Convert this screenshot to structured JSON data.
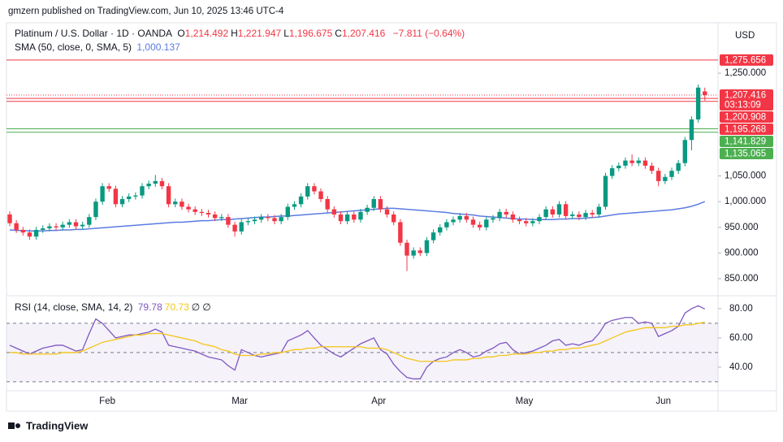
{
  "header": {
    "publisher": "gmzern published on TradingView.com, Jun 10, 2025 13:46 UTC-4",
    "currency": "USD",
    "footer": "TradingView"
  },
  "chart_data": [
    {
      "type": "candlestick",
      "legend": {
        "symbol": "Platinum / U.S. Dollar · 1D · OANDA",
        "ohlc": [
          {
            "key": "O",
            "value": "1,214.492"
          },
          {
            "key": "H",
            "value": "1,221.947"
          },
          {
            "key": "L",
            "value": "1,196.675"
          },
          {
            "key": "C",
            "value": "1,207.416"
          }
        ],
        "change": "−7.811 (−0.64%)"
      },
      "categories": [
        null,
        null,
        null,
        null,
        null,
        null,
        null,
        null,
        null,
        null,
        null,
        null,
        null,
        null,
        "Feb",
        null,
        null,
        null,
        null,
        null,
        null,
        null,
        null,
        null,
        null,
        null,
        null,
        null,
        null,
        null,
        null,
        null,
        null,
        null,
        "Mar",
        null,
        null,
        null,
        null,
        null,
        null,
        null,
        null,
        null,
        null,
        null,
        null,
        null,
        null,
        null,
        null,
        null,
        null,
        null,
        null,
        "Apr",
        null,
        null,
        null,
        null,
        null,
        null,
        null,
        null,
        null,
        null,
        null,
        null,
        null,
        null,
        null,
        null,
        null,
        null,
        null,
        null,
        null,
        "May",
        null,
        null,
        null,
        null,
        null,
        null,
        null,
        null,
        null,
        null,
        null,
        null,
        null,
        null,
        null,
        null,
        null,
        null,
        null,
        null,
        "Jun",
        null,
        null,
        null,
        null,
        null,
        null,
        null
      ],
      "open": [
        975,
        958,
        945,
        940,
        932,
        945,
        948,
        952,
        950,
        955,
        960,
        952,
        955,
        970,
        1000,
        1030,
        1025,
        995,
        1005,
        1010,
        1012,
        1030,
        1035,
        1040,
        1030,
        995,
        1000,
        990,
        985,
        980,
        978,
        975,
        968,
        970,
        955,
        942,
        960,
        962,
        965,
        970,
        968,
        962,
        970,
        990,
        995,
        1010,
        1030,
        1020,
        1005,
        985,
        975,
        962,
        975,
        965,
        980,
        988,
        1005,
        985,
        975,
        960,
        920,
        895,
        905,
        900,
        925,
        940,
        950,
        960,
        965,
        972,
        965,
        955,
        950,
        965,
        968,
        980,
        975,
        965,
        962,
        958,
        962,
        970,
        985,
        975,
        995,
        972,
        975,
        970,
        978,
        975,
        990,
        1050,
        1065,
        1070,
        1080,
        1075,
        1080,
        1070,
        1060,
        1040,
        1048,
        1060,
        1075,
        1120,
        1160,
        1214.492
      ],
      "high": [
        981,
        964,
        951,
        946,
        951,
        954,
        958,
        958,
        961,
        966,
        966,
        961,
        976,
        1006,
        1036,
        1036,
        1031,
        1011,
        1016,
        1018,
        1036,
        1041,
        1052,
        1046,
        1036,
        1006,
        1006,
        996,
        991,
        986,
        984,
        981,
        976,
        976,
        961,
        966,
        968,
        971,
        976,
        976,
        974,
        976,
        996,
        1001,
        1016,
        1036,
        1036,
        1026,
        1011,
        991,
        981,
        981,
        981,
        986,
        994,
        1011,
        1011,
        991,
        981,
        966,
        926,
        911,
        911,
        931,
        946,
        956,
        966,
        971,
        978,
        978,
        971,
        961,
        971,
        974,
        986,
        986,
        981,
        971,
        968,
        968,
        976,
        991,
        991,
        1001,
        1001,
        981,
        981,
        984,
        984,
        996,
        1056,
        1071,
        1076,
        1086,
        1092,
        1086,
        1086,
        1076,
        1066,
        1054,
        1066,
        1081,
        1126,
        1166,
        1228,
        1221.947
      ],
      "low": [
        952,
        939,
        934,
        926,
        926,
        939,
        942,
        944,
        944,
        949,
        946,
        946,
        949,
        964,
        994,
        1019,
        989,
        989,
        999,
        1004,
        1006,
        1024,
        1029,
        1024,
        989,
        989,
        984,
        979,
        974,
        972,
        969,
        962,
        962,
        949,
        932,
        936,
        954,
        956,
        959,
        962,
        956,
        956,
        964,
        984,
        989,
        1004,
        1014,
        999,
        979,
        969,
        956,
        956,
        959,
        959,
        974,
        982,
        979,
        969,
        954,
        914,
        865,
        889,
        894,
        894,
        919,
        934,
        944,
        954,
        959,
        959,
        949,
        944,
        944,
        959,
        962,
        969,
        959,
        956,
        952,
        952,
        956,
        964,
        969,
        969,
        966,
        966,
        964,
        964,
        969,
        969,
        984,
        1044,
        1059,
        1064,
        1069,
        1069,
        1064,
        1054,
        1030,
        1034,
        1042,
        1054,
        1069,
        1100,
        1154,
        1196.675
      ],
      "close": [
        958,
        945,
        940,
        932,
        945,
        948,
        952,
        950,
        955,
        960,
        952,
        955,
        970,
        1000,
        1030,
        1025,
        995,
        1005,
        1010,
        1012,
        1030,
        1035,
        1040,
        1030,
        995,
        1000,
        990,
        985,
        980,
        978,
        975,
        968,
        970,
        955,
        942,
        960,
        962,
        965,
        970,
        968,
        962,
        970,
        990,
        995,
        1010,
        1030,
        1020,
        1005,
        985,
        975,
        962,
        975,
        965,
        980,
        988,
        1005,
        985,
        975,
        960,
        920,
        895,
        905,
        900,
        925,
        940,
        950,
        960,
        965,
        972,
        965,
        955,
        950,
        965,
        968,
        980,
        975,
        965,
        962,
        958,
        962,
        970,
        985,
        975,
        995,
        972,
        975,
        970,
        978,
        975,
        990,
        1050,
        1065,
        1070,
        1080,
        1075,
        1080,
        1070,
        1060,
        1040,
        1048,
        1060,
        1075,
        1120,
        1160,
        1222,
        1207.416
      ],
      "up_color": "#089981",
      "down_color": "#f23645",
      "sma": {
        "name": "SMA (50, close, 0, SMA, 5)",
        "value_label": "1,000.137",
        "color": "#5b7be0",
        "values": [
          945,
          944,
          944,
          943,
          943,
          943,
          944,
          944,
          945,
          945,
          946,
          946,
          947,
          948,
          949,
          950,
          951,
          952,
          953,
          954,
          955,
          956,
          957,
          958,
          959,
          960,
          960,
          961,
          962,
          963,
          963,
          964,
          965,
          965,
          966,
          967,
          968,
          969,
          970,
          970,
          971,
          972,
          972,
          973,
          974,
          975,
          976,
          977,
          978,
          979,
          980,
          981,
          982,
          983,
          984,
          985,
          986,
          987,
          987,
          986,
          985,
          984,
          983,
          982,
          981,
          980,
          979,
          977,
          976,
          975,
          974,
          972,
          971,
          970,
          969,
          968,
          967,
          966,
          966,
          965,
          965,
          965,
          965,
          966,
          966,
          967,
          967,
          968,
          969,
          970,
          972,
          974,
          976,
          977,
          978,
          979,
          980,
          981,
          982,
          983,
          984,
          986,
          988,
          991,
          995,
          1000.137
        ]
      },
      "levels": [
        {
          "value": 1275.656,
          "label": "1,275.656",
          "color": "#f23645"
        },
        {
          "value": 1207.416,
          "label": "1,207.416",
          "color": "#f23645",
          "countdown": "03:13:09",
          "dotted": true
        },
        {
          "value": 1200.908,
          "label": "1,200.908",
          "color": "#f23645"
        },
        {
          "value": 1195.268,
          "label": "1,195.268",
          "color": "#f23645"
        },
        {
          "value": 1141.829,
          "label": "1,141.829",
          "color": "#4caf50"
        },
        {
          "value": 1135.065,
          "label": "1,135.065",
          "color": "#4caf50"
        }
      ],
      "ylim": [
        820,
        1345
      ],
      "yticks": [
        {
          "value": 850,
          "label": "850.000"
        },
        {
          "value": 900,
          "label": "900.000"
        },
        {
          "value": 950,
          "label": "950.000"
        },
        {
          "value": 1000,
          "label": "1,000.000"
        },
        {
          "value": 1050,
          "label": "1,050.000"
        },
        {
          "value": 1250,
          "label": "1,250.000"
        }
      ],
      "grid": false
    },
    {
      "type": "line",
      "legend": {
        "name": "RSI (14, close, SMA, 14, 2)",
        "values": [
          "79.78",
          "70.73",
          "∅",
          "∅"
        ]
      },
      "series": [
        {
          "color": "#7e57c2",
          "values": [
            55,
            53,
            51,
            49,
            51,
            53,
            54,
            55,
            55,
            53,
            51,
            52,
            63,
            73,
            70,
            65,
            60,
            61,
            62,
            62,
            63,
            64,
            66,
            64,
            55,
            54,
            53,
            52,
            51,
            49,
            47,
            46,
            45,
            41,
            38,
            52,
            50,
            48,
            47,
            48,
            49,
            50,
            58,
            60,
            62,
            65,
            60,
            55,
            52,
            49,
            47,
            50,
            53,
            56,
            58,
            60,
            52,
            49,
            42,
            37,
            33,
            32,
            32,
            40,
            44,
            46,
            47,
            50,
            52,
            50,
            47,
            48,
            51,
            53,
            56,
            57,
            52,
            49,
            50,
            51,
            53,
            55,
            58,
            59,
            55,
            56,
            55,
            57,
            58,
            63,
            70,
            72,
            73,
            74,
            74,
            70,
            71,
            70,
            61,
            63,
            65,
            68,
            77,
            80,
            82,
            79.78
          ]
        },
        {
          "color": "#f5c518",
          "values": [
            50,
            50,
            49,
            49,
            49,
            49,
            49,
            49,
            50,
            50,
            50,
            51,
            53,
            55,
            57,
            58,
            59,
            60,
            61,
            62,
            62,
            63,
            63,
            63,
            62,
            61,
            60,
            59,
            58,
            56,
            55,
            54,
            52,
            51,
            49,
            48,
            48,
            48,
            49,
            49,
            50,
            50,
            51,
            52,
            52,
            53,
            53,
            54,
            54,
            54,
            54,
            54,
            54,
            54,
            53,
            53,
            53,
            52,
            50,
            48,
            46,
            45,
            44,
            44,
            44,
            44,
            44,
            45,
            45,
            45,
            46,
            46,
            47,
            47,
            48,
            48,
            49,
            49,
            49,
            50,
            50,
            51,
            51,
            52,
            52,
            53,
            53,
            54,
            55,
            56,
            58,
            60,
            62,
            64,
            65,
            66,
            67,
            67,
            67,
            67,
            68,
            68,
            69,
            69,
            70,
            70.73
          ]
        }
      ],
      "bands": [
        30,
        50,
        70
      ],
      "band_color": "#7e57c2",
      "ylim": [
        24.4,
        88.3
      ],
      "yticks": [
        {
          "value": 40,
          "label": "40.00"
        },
        {
          "value": 60,
          "label": "60.00"
        },
        {
          "value": 80,
          "label": "80.00"
        }
      ],
      "grid": false
    }
  ]
}
